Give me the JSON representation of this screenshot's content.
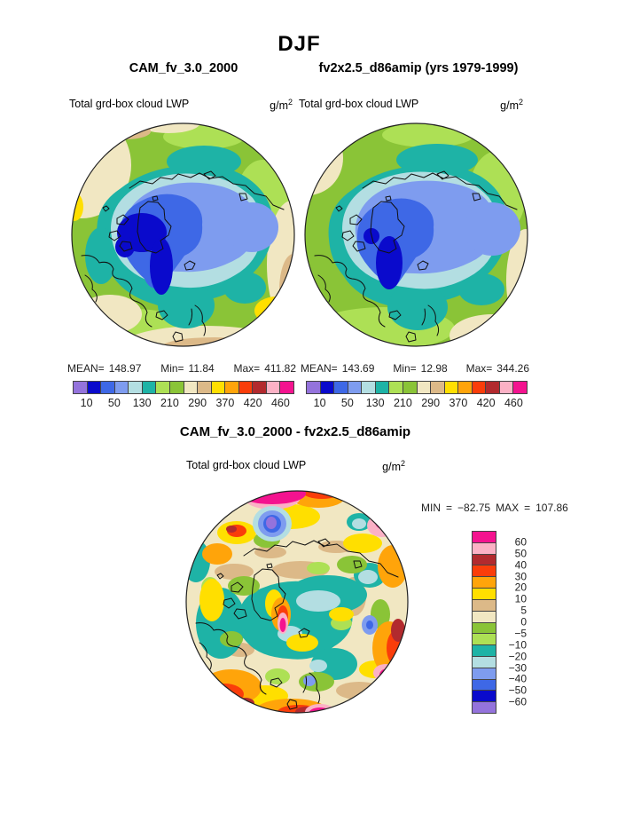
{
  "header": {
    "season": "DJF"
  },
  "panels": {
    "left": {
      "title": "CAM_fv_3.0_2000",
      "field_label": "Total grd-box cloud LWP",
      "units_base": "g/m",
      "units_exp": "2",
      "stats": {
        "mean_label": "MEAN=",
        "mean": "148.97",
        "min_label": "Min=",
        "min": "11.84",
        "max_label": "Max=",
        "max": "411.82"
      }
    },
    "right": {
      "title": "fv2x2.5_d86amip (yrs 1979-1999)",
      "field_label": "Total grd-box cloud LWP",
      "units_base": "g/m",
      "units_exp": "2",
      "stats": {
        "mean_label": "MEAN=",
        "mean": "143.69",
        "min_label": "Min=",
        "min": "12.98",
        "max_label": "Max=",
        "max": "344.26"
      }
    },
    "diff": {
      "title": "CAM_fv_3.0_2000 - fv2x2.5_d86amip",
      "field_label": "Total grd-box cloud LWP",
      "units_base": "g/m",
      "units_exp": "2",
      "stats": {
        "min_label": "MIN",
        "min_eq": "=",
        "min": "−82.75",
        "max_label": "MAX",
        "max_eq": "=",
        "max": "107.86"
      }
    }
  },
  "colorbar": {
    "palette": [
      "#9473DC",
      "#0A0ACC",
      "#3E68E6",
      "#7E9CEF",
      "#B3DEE2",
      "#1EB3A6",
      "#ADE055",
      "#8AC437",
      "#F1E7C2",
      "#DCB988",
      "#FFDF00",
      "#FFA40A",
      "#FA3D0A",
      "#B22A2E",
      "#FBB1C5",
      "#F4138F"
    ],
    "tick_labels": [
      "10",
      "50",
      "130",
      "210",
      "290",
      "370",
      "420",
      "460"
    ]
  },
  "diff_colorbar": {
    "palette": [
      "#F4138F",
      "#FBB1C5",
      "#B22A2E",
      "#FA3D0A",
      "#FFA40A",
      "#FFDF00",
      "#DCB988",
      "#F1E7C2",
      "#8AC437",
      "#ADE055",
      "#1EB3A6",
      "#B3DEE2",
      "#7E9CEF",
      "#3E68E6",
      "#0A0ACC",
      "#9473DC"
    ],
    "tick_labels": [
      "60",
      "50",
      "40",
      "30",
      "20",
      "10",
      "5",
      "0",
      "−5",
      "−10",
      "−20",
      "−30",
      "−40",
      "−50",
      "−60"
    ]
  },
  "chart_data": [
    {
      "type": "heatmap",
      "projection": "north polar stereographic",
      "season": "DJF",
      "title": "CAM_fv_3.0_2000",
      "field": "Total grd-box cloud LWP",
      "units": "g/m2",
      "mean": 148.97,
      "min": 11.84,
      "max": 411.82,
      "contour_level_labels": [
        10,
        50,
        130,
        210,
        290,
        370,
        420,
        460
      ],
      "palette_low_to_high": [
        "#9473DC",
        "#0A0ACC",
        "#3E68E6",
        "#7E9CEF",
        "#B3DEE2",
        "#1EB3A6",
        "#ADE055",
        "#8AC437",
        "#F1E7C2",
        "#DCB988",
        "#FFDF00",
        "#FFA40A",
        "#FA3D0A",
        "#B22A2E",
        "#FBB1C5",
        "#F4138F"
      ],
      "legend_position": "below"
    },
    {
      "type": "heatmap",
      "projection": "north polar stereographic",
      "season": "DJF",
      "title": "fv2x2.5_d86amip (yrs 1979-1999)",
      "field": "Total grd-box cloud LWP",
      "units": "g/m2",
      "mean": 143.69,
      "min": 12.98,
      "max": 344.26,
      "contour_level_labels": [
        10,
        50,
        130,
        210,
        290,
        370,
        420,
        460
      ],
      "palette_low_to_high": [
        "#9473DC",
        "#0A0ACC",
        "#3E68E6",
        "#7E9CEF",
        "#B3DEE2",
        "#1EB3A6",
        "#ADE055",
        "#8AC437",
        "#F1E7C2",
        "#DCB988",
        "#FFDF00",
        "#FFA40A",
        "#FA3D0A",
        "#B22A2E",
        "#FBB1C5",
        "#F4138F"
      ],
      "legend_position": "below"
    },
    {
      "type": "heatmap",
      "projection": "north polar stereographic",
      "season": "DJF",
      "title": "CAM_fv_3.0_2000 - fv2x2.5_d86amip",
      "field": "Total grd-box cloud LWP",
      "units": "g/m2",
      "min": -82.75,
      "max": 107.86,
      "contour_level_labels": [
        60,
        50,
        40,
        30,
        20,
        10,
        5,
        0,
        -5,
        -10,
        -20,
        -30,
        -40,
        -50,
        -60
      ],
      "palette_high_to_low": [
        "#F4138F",
        "#FBB1C5",
        "#B22A2E",
        "#FA3D0A",
        "#FFA40A",
        "#FFDF00",
        "#DCB988",
        "#F1E7C2",
        "#8AC437",
        "#ADE055",
        "#1EB3A6",
        "#B3DEE2",
        "#7E9CEF",
        "#3E68E6",
        "#0A0ACC",
        "#9473DC"
      ],
      "legend_position": "right"
    }
  ]
}
